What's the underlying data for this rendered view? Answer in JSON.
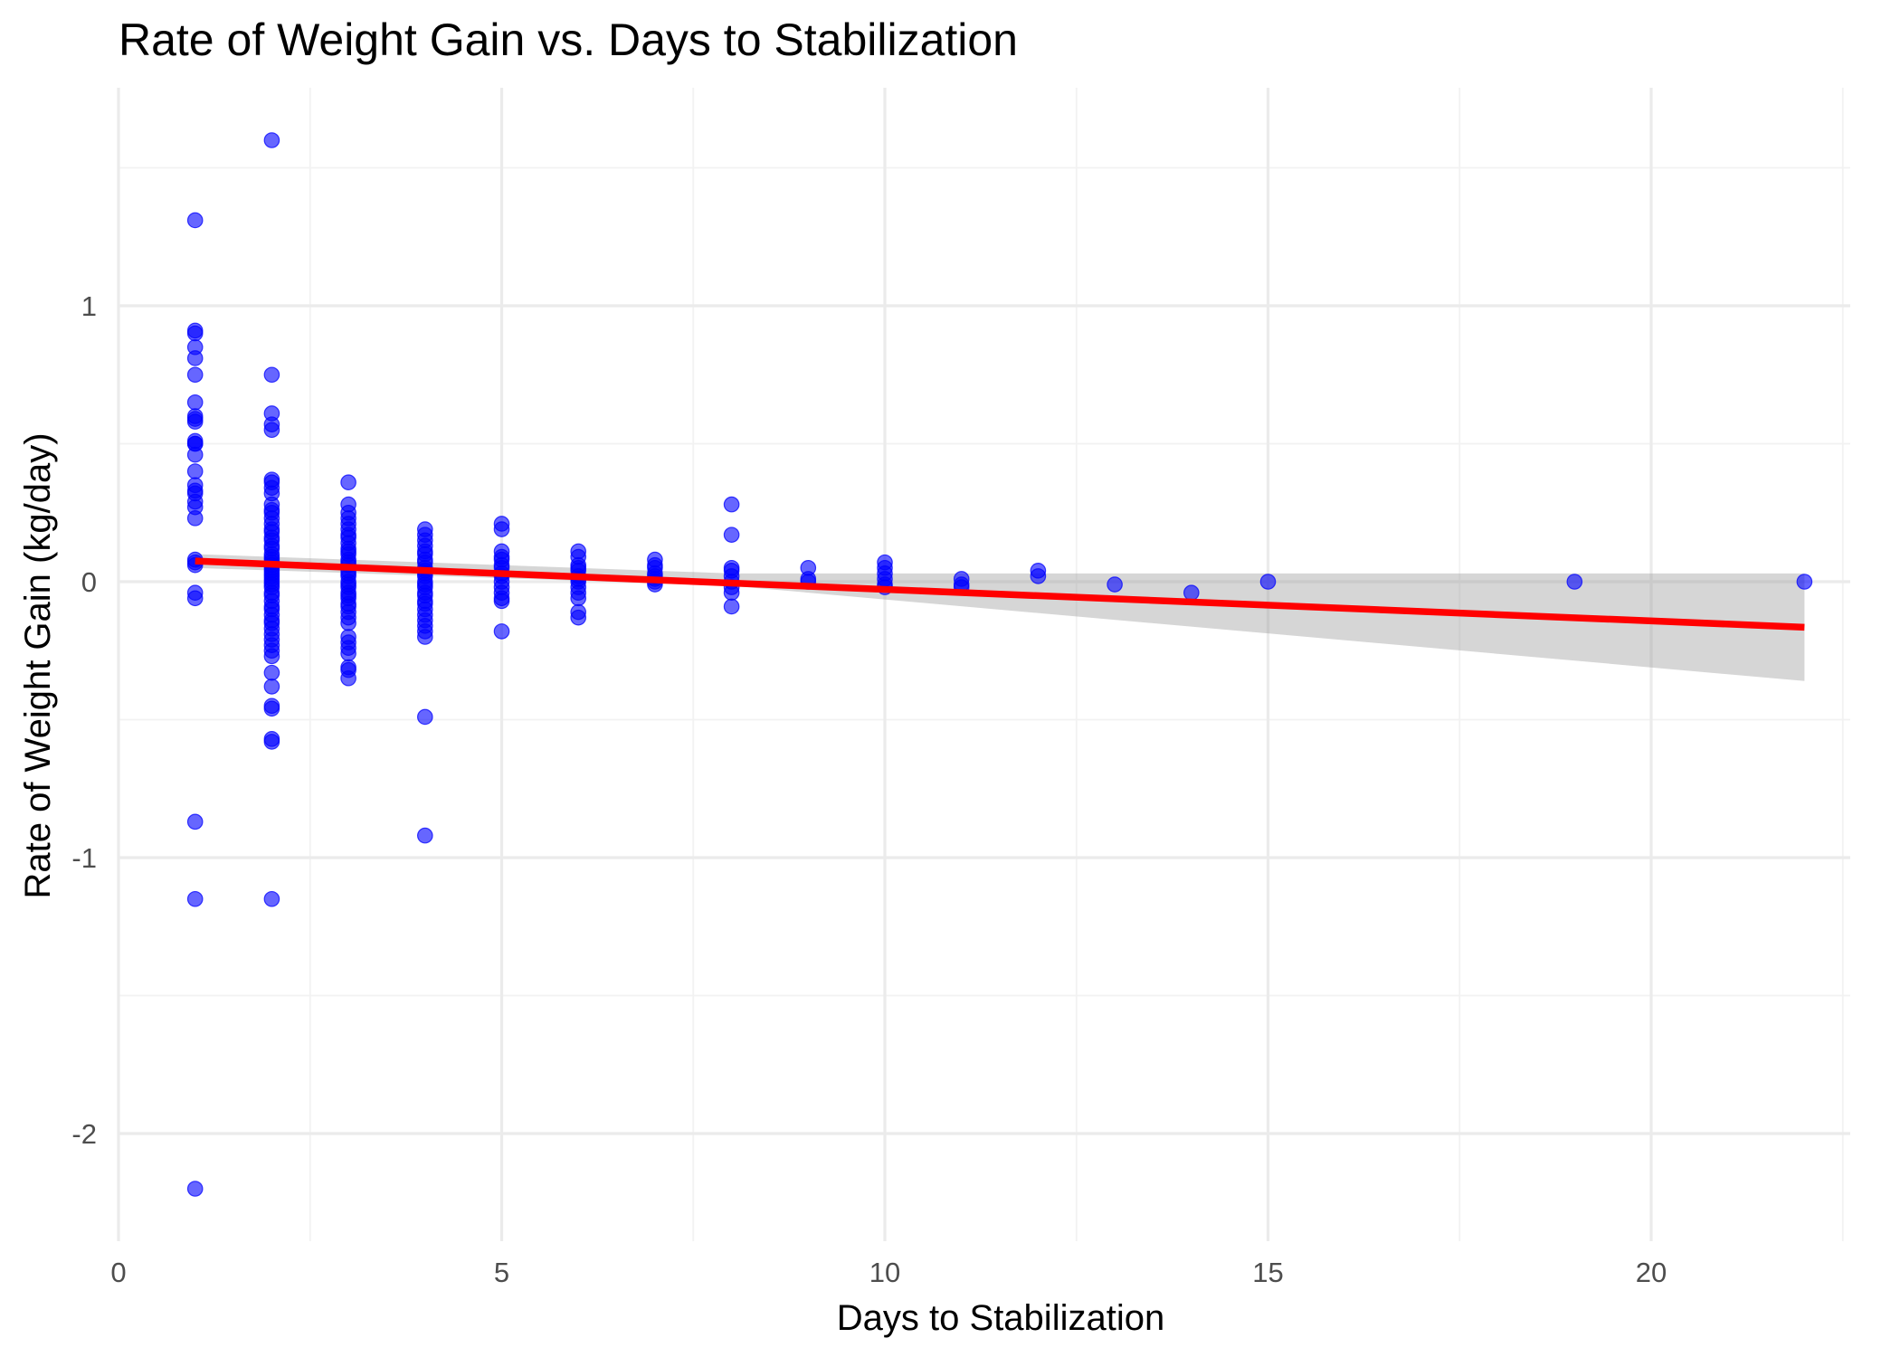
{
  "chart_data": {
    "type": "scatter",
    "title": "Rate of Weight Gain vs. Days to Stabilization",
    "xlabel": "Days to Stabilization",
    "ylabel": "Rate of Weight Gain (kg/day)",
    "xlim": [
      0,
      23.0
    ],
    "ylim": [
      -2.37,
      1.79
    ],
    "x_ticks": [
      0,
      5,
      10,
      15,
      20
    ],
    "x_tick_labels": [
      "0",
      "5",
      "10",
      "15",
      "20"
    ],
    "y_ticks": [
      -2,
      -1,
      0,
      1
    ],
    "y_tick_labels": [
      "-2",
      "-1",
      "0",
      "1"
    ],
    "grid": true,
    "legend": "none",
    "point_color": "#0000ff",
    "fit_color": "#ff0000",
    "band_color": "#999999",
    "series": [
      {
        "values": [
          [
            1,
            1.31
          ],
          [
            1,
            0.91
          ],
          [
            1,
            0.9
          ],
          [
            1,
            0.85
          ],
          [
            1,
            0.81
          ],
          [
            1,
            0.75
          ],
          [
            1,
            0.65
          ],
          [
            1,
            0.6
          ],
          [
            1,
            0.59
          ],
          [
            1,
            0.58
          ],
          [
            1,
            0.51
          ],
          [
            1,
            0.5
          ],
          [
            1,
            0.5
          ],
          [
            1,
            0.46
          ],
          [
            1,
            0.4
          ],
          [
            1,
            0.35
          ],
          [
            1,
            0.33
          ],
          [
            1,
            0.32
          ],
          [
            1,
            0.29
          ],
          [
            1,
            0.27
          ],
          [
            1,
            0.23
          ],
          [
            1,
            0.08
          ],
          [
            1,
            0.07
          ],
          [
            1,
            0.06
          ],
          [
            1,
            -0.04
          ],
          [
            1,
            -0.06
          ],
          [
            1,
            -0.87
          ],
          [
            1,
            -1.15
          ],
          [
            1,
            -2.2
          ],
          [
            2,
            1.6
          ],
          [
            2,
            0.75
          ],
          [
            2,
            0.61
          ],
          [
            2,
            0.57
          ],
          [
            2,
            0.55
          ],
          [
            2,
            0.37
          ],
          [
            2,
            0.36
          ],
          [
            2,
            0.34
          ],
          [
            2,
            0.32
          ],
          [
            2,
            0.28
          ],
          [
            2,
            0.26
          ],
          [
            2,
            0.25
          ],
          [
            2,
            0.23
          ],
          [
            2,
            0.21
          ],
          [
            2,
            0.19
          ],
          [
            2,
            0.18
          ],
          [
            2,
            0.16
          ],
          [
            2,
            0.15
          ],
          [
            2,
            0.13
          ],
          [
            2,
            0.12
          ],
          [
            2,
            0.1
          ],
          [
            2,
            0.09
          ],
          [
            2,
            0.08
          ],
          [
            2,
            0.07
          ],
          [
            2,
            0.06
          ],
          [
            2,
            0.05
          ],
          [
            2,
            0.04
          ],
          [
            2,
            0.03
          ],
          [
            2,
            0.02
          ],
          [
            2,
            0.01
          ],
          [
            2,
            0.0
          ],
          [
            2,
            -0.01
          ],
          [
            2,
            -0.02
          ],
          [
            2,
            -0.04
          ],
          [
            2,
            -0.05
          ],
          [
            2,
            -0.07
          ],
          [
            2,
            -0.09
          ],
          [
            2,
            -0.1
          ],
          [
            2,
            -0.12
          ],
          [
            2,
            -0.14
          ],
          [
            2,
            -0.15
          ],
          [
            2,
            -0.17
          ],
          [
            2,
            -0.19
          ],
          [
            2,
            -0.21
          ],
          [
            2,
            -0.23
          ],
          [
            2,
            -0.25
          ],
          [
            2,
            -0.27
          ],
          [
            2,
            -0.33
          ],
          [
            2,
            -0.38
          ],
          [
            2,
            -0.45
          ],
          [
            2,
            -0.46
          ],
          [
            2,
            -0.57
          ],
          [
            2,
            -0.58
          ],
          [
            2,
            -1.15
          ],
          [
            3,
            0.36
          ],
          [
            3,
            0.28
          ],
          [
            3,
            0.25
          ],
          [
            3,
            0.23
          ],
          [
            3,
            0.21
          ],
          [
            3,
            0.19
          ],
          [
            3,
            0.17
          ],
          [
            3,
            0.16
          ],
          [
            3,
            0.14
          ],
          [
            3,
            0.12
          ],
          [
            3,
            0.11
          ],
          [
            3,
            0.1
          ],
          [
            3,
            0.08
          ],
          [
            3,
            0.07
          ],
          [
            3,
            0.06
          ],
          [
            3,
            0.04
          ],
          [
            3,
            0.03
          ],
          [
            3,
            0.02
          ],
          [
            3,
            0.0
          ],
          [
            3,
            -0.01
          ],
          [
            3,
            -0.02
          ],
          [
            3,
            -0.04
          ],
          [
            3,
            -0.05
          ],
          [
            3,
            -0.06
          ],
          [
            3,
            -0.08
          ],
          [
            3,
            -0.09
          ],
          [
            3,
            -0.11
          ],
          [
            3,
            -0.13
          ],
          [
            3,
            -0.15
          ],
          [
            3,
            -0.2
          ],
          [
            3,
            -0.22
          ],
          [
            3,
            -0.24
          ],
          [
            3,
            -0.26
          ],
          [
            3,
            -0.31
          ],
          [
            3,
            -0.32
          ],
          [
            3,
            -0.35
          ],
          [
            4,
            0.19
          ],
          [
            4,
            0.17
          ],
          [
            4,
            0.15
          ],
          [
            4,
            0.13
          ],
          [
            4,
            0.11
          ],
          [
            4,
            0.1
          ],
          [
            4,
            0.08
          ],
          [
            4,
            0.07
          ],
          [
            4,
            0.05
          ],
          [
            4,
            0.04
          ],
          [
            4,
            0.03
          ],
          [
            4,
            0.02
          ],
          [
            4,
            0.0
          ],
          [
            4,
            -0.01
          ],
          [
            4,
            -0.02
          ],
          [
            4,
            -0.04
          ],
          [
            4,
            -0.05
          ],
          [
            4,
            -0.07
          ],
          [
            4,
            -0.08
          ],
          [
            4,
            -0.1
          ],
          [
            4,
            -0.12
          ],
          [
            4,
            -0.14
          ],
          [
            4,
            -0.16
          ],
          [
            4,
            -0.18
          ],
          [
            4,
            -0.2
          ],
          [
            4,
            -0.49
          ],
          [
            4,
            -0.92
          ],
          [
            5,
            0.21
          ],
          [
            5,
            0.19
          ],
          [
            5,
            0.11
          ],
          [
            5,
            0.09
          ],
          [
            5,
            0.08
          ],
          [
            5,
            0.06
          ],
          [
            5,
            0.05
          ],
          [
            5,
            0.03
          ],
          [
            5,
            0.02
          ],
          [
            5,
            0.0
          ],
          [
            5,
            -0.02
          ],
          [
            5,
            -0.04
          ],
          [
            5,
            -0.06
          ],
          [
            5,
            -0.07
          ],
          [
            5,
            -0.18
          ],
          [
            6,
            0.11
          ],
          [
            6,
            0.09
          ],
          [
            6,
            0.06
          ],
          [
            6,
            0.05
          ],
          [
            6,
            0.04
          ],
          [
            6,
            0.02
          ],
          [
            6,
            0.01
          ],
          [
            6,
            0.0
          ],
          [
            6,
            -0.02
          ],
          [
            6,
            -0.04
          ],
          [
            6,
            -0.06
          ],
          [
            6,
            -0.11
          ],
          [
            6,
            -0.13
          ],
          [
            7,
            0.08
          ],
          [
            7,
            0.06
          ],
          [
            7,
            0.05
          ],
          [
            7,
            0.03
          ],
          [
            7,
            0.02
          ],
          [
            7,
            0.01
          ],
          [
            7,
            0.0
          ],
          [
            7,
            -0.01
          ],
          [
            8,
            0.28
          ],
          [
            8,
            0.17
          ],
          [
            8,
            0.05
          ],
          [
            8,
            0.04
          ],
          [
            8,
            0.02
          ],
          [
            8,
            0.0
          ],
          [
            8,
            -0.02
          ],
          [
            8,
            -0.04
          ],
          [
            8,
            -0.09
          ],
          [
            9,
            0.05
          ],
          [
            9,
            0.01
          ],
          [
            9,
            0.0
          ],
          [
            10,
            0.07
          ],
          [
            10,
            0.05
          ],
          [
            10,
            0.03
          ],
          [
            10,
            0.01
          ],
          [
            10,
            -0.01
          ],
          [
            10,
            -0.02
          ],
          [
            11,
            0.01
          ],
          [
            11,
            -0.01
          ],
          [
            11,
            -0.02
          ],
          [
            12,
            0.04
          ],
          [
            12,
            0.02
          ],
          [
            13,
            -0.01
          ],
          [
            14,
            -0.04
          ],
          [
            15,
            0.0
          ],
          [
            19,
            0.0
          ],
          [
            22,
            0.0
          ]
        ]
      }
    ],
    "fit": {
      "method": "linear",
      "x_range": [
        1,
        22
      ],
      "y_at_x_min": 0.075,
      "y_at_x_max": -0.165,
      "band_lower_at": [
        [
          1,
          0.05
        ],
        [
          8,
          -0.015
        ],
        [
          22,
          -0.36
        ]
      ],
      "band_upper_at": [
        [
          1,
          0.1
        ],
        [
          8,
          0.03
        ],
        [
          22,
          0.03
        ]
      ]
    }
  }
}
